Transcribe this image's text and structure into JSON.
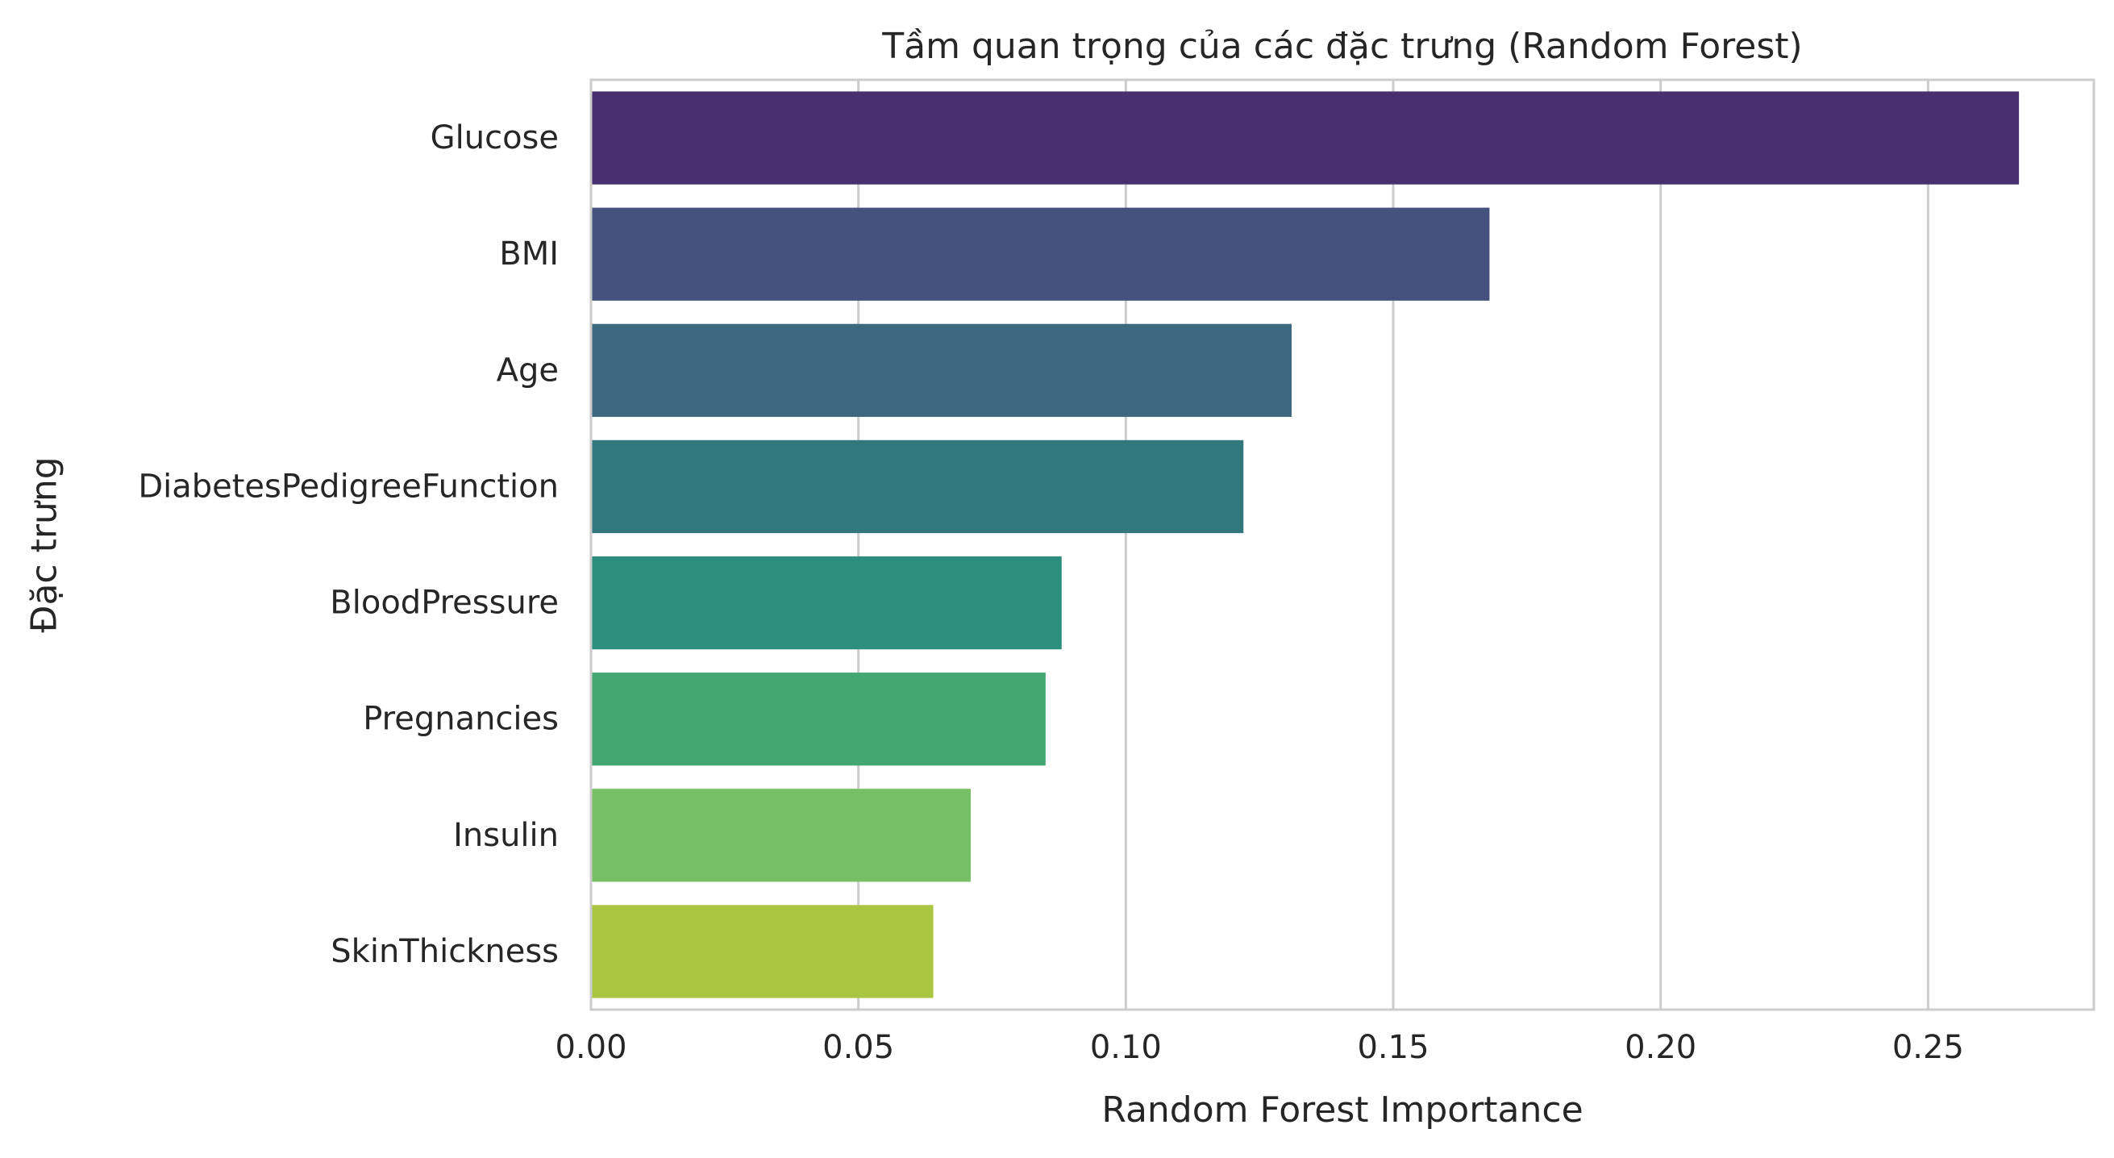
{
  "chart_data": {
    "type": "bar",
    "orientation": "horizontal",
    "title": "Tầm quan trọng của các đặc trưng (Random Forest)",
    "xlabel": "Random Forest Importance",
    "ylabel": "Đặc trưng",
    "categories": [
      "Glucose",
      "BMI",
      "Age",
      "DiabetesPedigreeFunction",
      "BloodPressure",
      "Pregnancies",
      "Insulin",
      "SkinThickness"
    ],
    "values": [
      0.267,
      0.168,
      0.131,
      0.122,
      0.088,
      0.085,
      0.071,
      0.064
    ],
    "colors": [
      "#482f6e",
      "#46527e",
      "#3e6780",
      "#33777e",
      "#2c8e7c",
      "#43a673",
      "#77bf64",
      "#a9c642"
    ],
    "xlim": [
      0,
      0.281
    ],
    "xticks": [
      0.0,
      0.05,
      0.1,
      0.15,
      0.2,
      0.25
    ],
    "xtick_labels": [
      "0.00",
      "0.05",
      "0.10",
      "0.15",
      "0.20",
      "0.25"
    ],
    "grid": "vertical",
    "legend": "none"
  }
}
